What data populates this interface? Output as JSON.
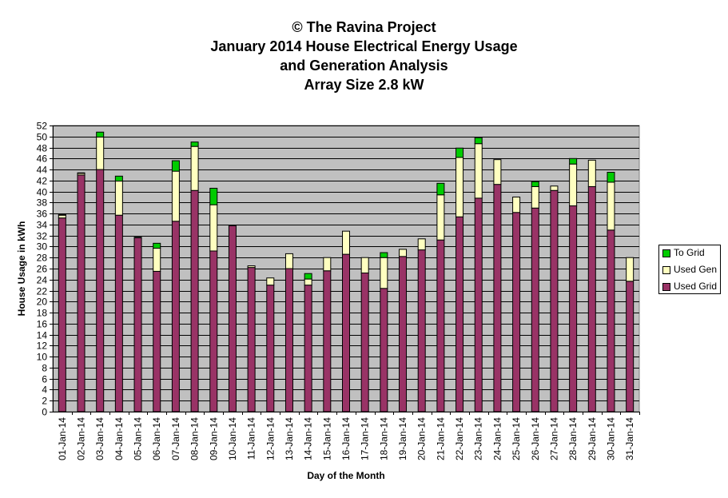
{
  "titles": {
    "line1": "© The Ravina Project",
    "line2": "January 2014 House Electrical Energy Usage",
    "line3": "and Generation Analysis",
    "line4": "Array Size 2.8 kW"
  },
  "colors": {
    "plot_bg": "#c0c0c0",
    "used_grid": "#993366",
    "used_gen": "#ffffc0",
    "to_grid": "#00cc00"
  },
  "chart_data": {
    "type": "bar",
    "stacked": true,
    "title": "January 2014 House Electrical Energy Usage and Generation Analysis",
    "xlabel": "Day of the Month",
    "ylabel": "House Usage in kWh",
    "ylim": [
      0,
      52
    ],
    "ytick_step": 2,
    "grid": true,
    "legend_position": "right",
    "categories": [
      "01-Jan-14",
      "02-Jan-14",
      "03-Jan-14",
      "04-Jan-14",
      "05-Jan-14",
      "06-Jan-14",
      "07-Jan-14",
      "08-Jan-14",
      "09-Jan-14",
      "10-Jan-14",
      "11-Jan-14",
      "12-Jan-14",
      "13-Jan-14",
      "14-Jan-14",
      "15-Jan-14",
      "16-Jan-14",
      "17-Jan-14",
      "18-Jan-14",
      "19-Jan-14",
      "20-Jan-14",
      "21-Jan-14",
      "22-Jan-14",
      "23-Jan-14",
      "24-Jan-14",
      "25-Jan-14",
      "26-Jan-14",
      "27-Jan-14",
      "28-Jan-14",
      "29-Jan-14",
      "30-Jan-14",
      "31-Jan-14"
    ],
    "series": [
      {
        "name": "Used Grid",
        "values": [
          35.2,
          43.0,
          44.0,
          35.7,
          31.6,
          25.5,
          34.6,
          40.2,
          29.2,
          33.8,
          26.2,
          23.0,
          26.0,
          23.0,
          25.6,
          28.6,
          25.2,
          22.4,
          28.2,
          29.4,
          31.2,
          35.4,
          38.8,
          41.3,
          36.2,
          37.0,
          40.2,
          37.4,
          40.9,
          33.0,
          23.7
        ]
      },
      {
        "name": "Used Gen",
        "values": [
          0.5,
          0.3,
          5.9,
          6.2,
          0.0,
          4.2,
          9.1,
          8.0,
          8.4,
          0.0,
          0.3,
          1.3,
          2.7,
          1.1,
          2.4,
          4.2,
          2.8,
          5.6,
          1.3,
          2.0,
          8.2,
          10.8,
          9.9,
          4.5,
          2.8,
          3.9,
          0.8,
          7.6,
          4.8,
          8.7,
          4.3
        ]
      },
      {
        "name": "To Grid",
        "values": [
          0.1,
          0.1,
          0.9,
          0.9,
          0.1,
          0.9,
          1.9,
          0.8,
          3.0,
          0.1,
          0.0,
          0.0,
          0.0,
          1.0,
          0.0,
          0.0,
          0.0,
          0.9,
          0.0,
          0.0,
          2.1,
          1.7,
          1.1,
          0.0,
          0.0,
          0.9,
          0.0,
          1.0,
          0.0,
          1.8,
          0.0
        ]
      }
    ]
  }
}
